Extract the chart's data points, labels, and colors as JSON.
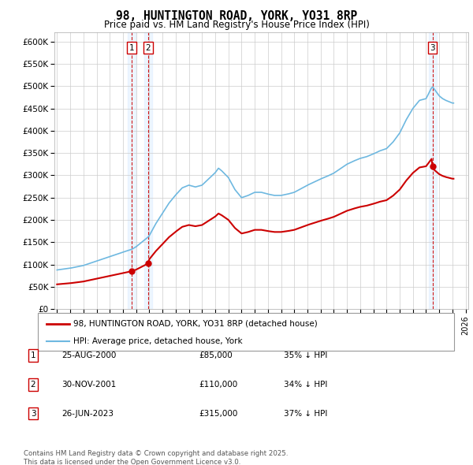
{
  "title": "98, HUNTINGTON ROAD, YORK, YO31 8RP",
  "subtitle": "Price paid vs. HM Land Registry's House Price Index (HPI)",
  "legend_line1": "98, HUNTINGTON ROAD, YORK, YO31 8RP (detached house)",
  "legend_line2": "HPI: Average price, detached house, York",
  "footer": "Contains HM Land Registry data © Crown copyright and database right 2025.\nThis data is licensed under the Open Government Licence v3.0.",
  "transactions": [
    {
      "num": 1,
      "date": "25-AUG-2000",
      "price": 85000,
      "hpi_diff": "35% ↓ HPI",
      "year": 2000.65
    },
    {
      "num": 2,
      "date": "30-NOV-2001",
      "price": 110000,
      "hpi_diff": "34% ↓ HPI",
      "year": 2001.92
    },
    {
      "num": 3,
      "date": "26-JUN-2023",
      "price": 315000,
      "hpi_diff": "37% ↓ HPI",
      "year": 2023.48
    }
  ],
  "hpi_color": "#6eb8e0",
  "paid_color": "#cc0000",
  "vline_color": "#cc0000",
  "ylim_min": 0,
  "ylim_max": 620000,
  "xlim_min": 1994.8,
  "xlim_max": 2026.2,
  "yticks": [
    0,
    50000,
    100000,
    150000,
    200000,
    250000,
    300000,
    350000,
    400000,
    450000,
    500000,
    550000,
    600000
  ],
  "xticks": [
    1995,
    1996,
    1997,
    1998,
    1999,
    2000,
    2001,
    2002,
    2003,
    2004,
    2005,
    2006,
    2007,
    2008,
    2009,
    2010,
    2011,
    2012,
    2013,
    2014,
    2015,
    2016,
    2017,
    2018,
    2019,
    2020,
    2021,
    2022,
    2023,
    2024,
    2025,
    2026
  ],
  "hpi_base_year": 2000.65,
  "hpi_base_value": 130000,
  "t1_year": 2000.65,
  "t1_price": 85000,
  "t2_year": 2001.92,
  "t2_price": 110000,
  "t3_year": 2023.48,
  "t3_price": 315000
}
